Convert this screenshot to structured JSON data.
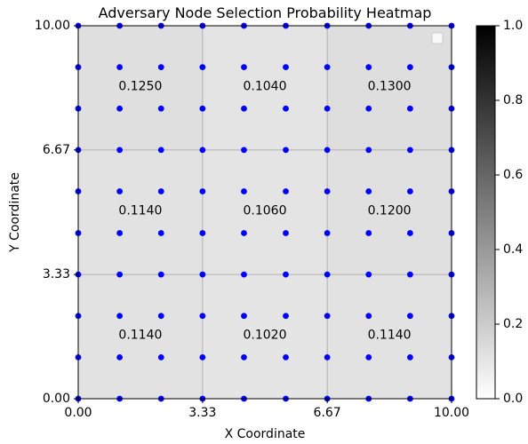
{
  "chart_data": {
    "type": "heatmap",
    "title": "Adversary Node Selection Probability Heatmap",
    "xlabel": "X Coordinate",
    "ylabel": "Y Coordinate",
    "xlim": [
      0,
      10
    ],
    "ylim": [
      0,
      10
    ],
    "x_ticks": [
      "0.00",
      "3.33",
      "6.67",
      "10.00"
    ],
    "y_ticks": [
      "0.00",
      "3.33",
      "6.67",
      "10.00"
    ],
    "grid": true,
    "colormap": "gray_r",
    "cells": [
      {
        "x": [
          0,
          3.33
        ],
        "y": [
          6.67,
          10
        ],
        "value": 0.125,
        "label": "0.1250"
      },
      {
        "x": [
          3.33,
          6.67
        ],
        "y": [
          6.67,
          10
        ],
        "value": 0.104,
        "label": "0.1040"
      },
      {
        "x": [
          6.67,
          10
        ],
        "y": [
          6.67,
          10
        ],
        "value": 0.13,
        "label": "0.1300"
      },
      {
        "x": [
          0,
          3.33
        ],
        "y": [
          3.33,
          6.67
        ],
        "value": 0.114,
        "label": "0.1140"
      },
      {
        "x": [
          3.33,
          6.67
        ],
        "y": [
          3.33,
          6.67
        ],
        "value": 0.106,
        "label": "0.1060"
      },
      {
        "x": [
          6.67,
          10
        ],
        "y": [
          3.33,
          6.67
        ],
        "value": 0.12,
        "label": "0.1200"
      },
      {
        "x": [
          0,
          3.33
        ],
        "y": [
          0,
          3.33
        ],
        "value": 0.114,
        "label": "0.1140"
      },
      {
        "x": [
          3.33,
          6.67
        ],
        "y": [
          0,
          3.33
        ],
        "value": 0.102,
        "label": "0.1020"
      },
      {
        "x": [
          6.67,
          10
        ],
        "y": [
          0,
          3.33
        ],
        "value": 0.114,
        "label": "0.1140"
      }
    ],
    "nodes": {
      "color": "#0000ff",
      "x": [
        0,
        1.11,
        2.22,
        3.33,
        4.44,
        5.56,
        6.67,
        7.78,
        8.89,
        10
      ],
      "y": [
        0,
        1.11,
        2.22,
        3.33,
        4.44,
        5.56,
        6.67,
        7.78,
        8.89,
        10
      ]
    },
    "colorbar": {
      "range": [
        0,
        1
      ],
      "ticks": [
        "0.0",
        "0.2",
        "0.4",
        "0.6",
        "0.8",
        "1.0"
      ]
    },
    "legend": {
      "position": "upper-right",
      "entries": []
    }
  }
}
